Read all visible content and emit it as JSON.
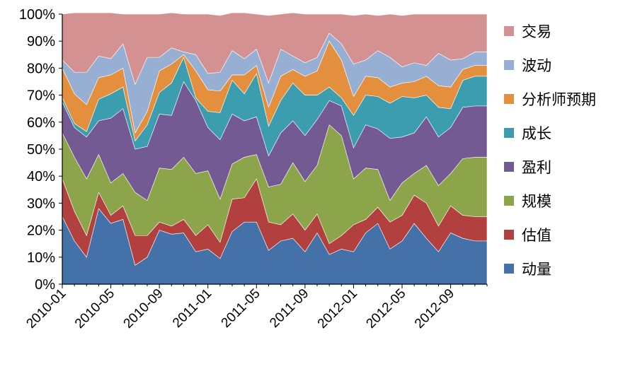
{
  "chart_data": {
    "type": "area",
    "stacked": true,
    "percent": true,
    "ylim": [
      0,
      100
    ],
    "yticks": [
      "0%",
      "10%",
      "20%",
      "30%",
      "40%",
      "50%",
      "60%",
      "70%",
      "80%",
      "90%",
      "100%"
    ],
    "xtick_labels": [
      "2010-01",
      "2010-05",
      "2010-09",
      "2011-01",
      "2011-05",
      "2011-09",
      "2012-01",
      "2012-05",
      "2012-09"
    ],
    "x": [
      "2010-01",
      "2010-02",
      "2010-03",
      "2010-04",
      "2010-05",
      "2010-06",
      "2010-07",
      "2010-08",
      "2010-09",
      "2010-10",
      "2010-11",
      "2010-12",
      "2011-01",
      "2011-02",
      "2011-03",
      "2011-04",
      "2011-05",
      "2011-06",
      "2011-07",
      "2011-08",
      "2011-09",
      "2011-10",
      "2011-11",
      "2011-12",
      "2012-01",
      "2012-02",
      "2012-03",
      "2012-04",
      "2012-05",
      "2012-06",
      "2012-07",
      "2012-08",
      "2012-09",
      "2012-10",
      "2012-11",
      "2012-12"
    ],
    "grid": false,
    "legend_position": "right",
    "series": [
      {
        "name": "动量",
        "color": "#4472A8",
        "values": [
          25,
          16,
          10,
          28,
          22.5,
          24,
          7,
          10,
          20,
          18.5,
          19,
          12,
          13,
          9.5,
          19.5,
          23,
          23,
          12.5,
          16,
          17,
          12,
          19,
          11,
          13,
          12,
          19,
          22.5,
          13,
          16,
          22.5,
          17,
          12,
          19,
          17,
          16,
          16
        ]
      },
      {
        "name": "估值",
        "color": "#B2403E",
        "values": [
          14,
          11,
          8,
          6,
          3,
          5,
          11,
          8,
          3,
          3,
          5,
          6,
          9,
          6,
          12,
          9,
          16,
          10.5,
          6,
          9,
          8,
          7,
          4,
          5,
          10,
          5,
          6,
          10,
          9.5,
          10.5,
          13,
          9.5,
          10,
          8.5,
          9,
          9
        ]
      },
      {
        "name": "规模",
        "color": "#8CA54A",
        "values": [
          17,
          20,
          21,
          14,
          12,
          12,
          16,
          13,
          20,
          21,
          23,
          23,
          20,
          16,
          13,
          15,
          9,
          13,
          15,
          19,
          18,
          18,
          44,
          37,
          17,
          19,
          14,
          8,
          12,
          8,
          14,
          15,
          12,
          21,
          22,
          22
        ]
      },
      {
        "name": "盈利",
        "color": "#735A92",
        "values": [
          11.5,
          11,
          15.5,
          12.5,
          24,
          24,
          16,
          20,
          20,
          20,
          28,
          27,
          16,
          22,
          18.5,
          13.5,
          14,
          11.5,
          19,
          15.5,
          17,
          17,
          9,
          11,
          11.5,
          16,
          15,
          23,
          17,
          15,
          18,
          18,
          17,
          19,
          19,
          19
        ]
      },
      {
        "name": "成长",
        "color": "#3C9DAF",
        "values": [
          1.5,
          1.5,
          2,
          8,
          9,
          8,
          3,
          8,
          8,
          12,
          9,
          1,
          6,
          10,
          12.5,
          10,
          16,
          11,
          12,
          14,
          15,
          9,
          5,
          3,
          12,
          11,
          12,
          13,
          15,
          13,
          8,
          11,
          7,
          10,
          11,
          11
        ]
      },
      {
        "name": "分析师预期",
        "color": "#E48F3D",
        "values": [
          11,
          11,
          10,
          8,
          7,
          7,
          3,
          5,
          8,
          7,
          1,
          10,
          8,
          8,
          2,
          7,
          3,
          7,
          9,
          5,
          7,
          9,
          17,
          14,
          7,
          7,
          7,
          6,
          5,
          6,
          7,
          8,
          8,
          4,
          4,
          4
        ]
      },
      {
        "name": "波动",
        "color": "#98AFD4",
        "values": [
          3,
          8,
          12,
          8,
          6,
          9,
          18,
          20,
          5,
          6,
          1,
          6,
          6,
          7,
          9,
          6,
          6,
          9,
          10,
          5,
          5,
          5,
          3,
          6,
          12,
          6,
          10,
          11,
          6,
          7,
          4,
          12,
          10,
          4,
          5,
          5
        ]
      },
      {
        "name": "交易",
        "color": "#D49191",
        "values": [
          17,
          22,
          22,
          16,
          17,
          11,
          26,
          16,
          16,
          13,
          14,
          15,
          22,
          21,
          14,
          17,
          13,
          25,
          13,
          16,
          18,
          16,
          7,
          11,
          18,
          17,
          13,
          16,
          19,
          18,
          19,
          14.5,
          17,
          16.5,
          14,
          14
        ]
      }
    ]
  }
}
